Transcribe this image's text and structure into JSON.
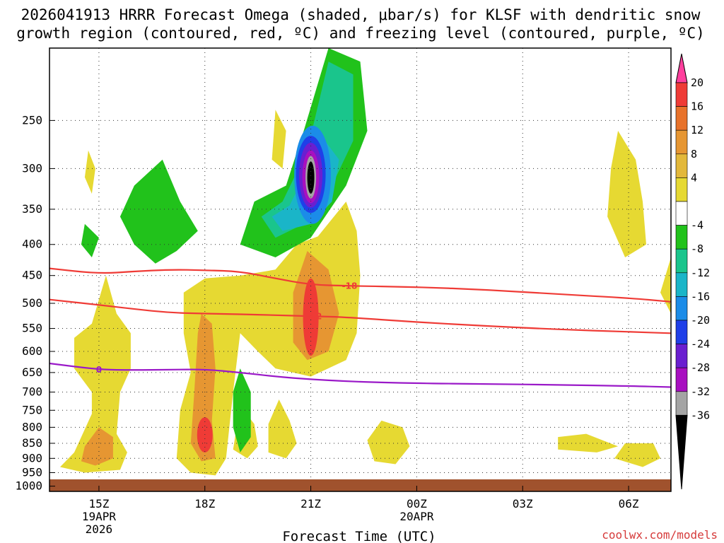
{
  "chart_data": {
    "type": "contour",
    "title_line1": "2026041913 HRRR Forecast Omega (shaded, μbar/s) for KLSF with dendritic snow",
    "title_line2": "growth region (contoured, red, ºC) and freezing level (contoured, purple, ºC)",
    "xlabel": "Forecast Time (UTC)",
    "credit": "coolwx.com/models",
    "x_hours": [
      0,
      31
    ],
    "xlim": [
      13.6,
      31.2
    ],
    "x_ticks": [
      {
        "hour": 15,
        "lines": [
          "15Z",
          "19APR",
          "2026"
        ]
      },
      {
        "hour": 18,
        "lines": [
          "18Z"
        ]
      },
      {
        "hour": 21,
        "lines": [
          "21Z"
        ]
      },
      {
        "hour": 24,
        "lines": [
          "00Z",
          "20APR"
        ]
      },
      {
        "hour": 27,
        "lines": [
          "03Z"
        ]
      },
      {
        "hour": 30,
        "lines": [
          "06Z"
        ]
      }
    ],
    "y_ticks": [
      250,
      300,
      350,
      400,
      450,
      500,
      550,
      600,
      650,
      700,
      750,
      800,
      850,
      900,
      950,
      1000
    ],
    "ylim": [
      190,
      1020
    ],
    "y_scale": "log-pressure",
    "colorbar": {
      "labels": [
        "20",
        "16",
        "12",
        "8",
        "4",
        "-4",
        "-8",
        "-12",
        "-16",
        "-20",
        "-24",
        "-28",
        "-32",
        "-36"
      ],
      "colors": [
        "#ff3f9d",
        "#ef3b36",
        "#e8722a",
        "#e69632",
        "#e3b83a",
        "#e6d932",
        "#ffffff",
        "#21c21b",
        "#1ac58c",
        "#1ab5c8",
        "#1b8ce8",
        "#1f3fe8",
        "#6a1fd0",
        "#a80fc0",
        "#a4a4a4",
        "#000000"
      ]
    },
    "omega_features": [
      {
        "name": "rising-motion core 21Z",
        "hour": 21.0,
        "p": 310,
        "value": -36
      },
      {
        "name": "upper green band",
        "hour": 21.3,
        "p": 330,
        "value": -8
      },
      {
        "name": "sinking core 18Z low level",
        "hour": 18.0,
        "p": 830,
        "value": 16
      },
      {
        "name": "sinking core 21Z mid level",
        "hour": 21.0,
        "p": 530,
        "value": 16
      },
      {
        "name": "mid-level sinking 15Z",
        "hour": 15.3,
        "p": 870,
        "value": 8
      },
      {
        "name": "late weak sinking 06Z",
        "hour": 30.0,
        "p": 330,
        "value": 4
      }
    ],
    "contours": [
      {
        "name": "dgz-upper",
        "color": "#ef3b36",
        "label": "-18",
        "x": [
          13.6,
          15,
          16,
          17,
          18,
          19,
          20,
          21,
          22,
          24,
          26,
          28,
          30,
          31.2
        ],
        "p": [
          438,
          447,
          443,
          440,
          441,
          443,
          455,
          466,
          468,
          470,
          475,
          483,
          490,
          497
        ]
      },
      {
        "name": "dgz-lower",
        "color": "#ef3b36",
        "label": "-12",
        "x": [
          13.6,
          15,
          16,
          17,
          18,
          19,
          20,
          21,
          22,
          24,
          26,
          28,
          30,
          31.2
        ],
        "p": [
          493,
          503,
          511,
          518,
          520,
          521,
          523,
          525,
          527,
          537,
          545,
          552,
          557,
          560
        ]
      },
      {
        "name": "freezing-level",
        "color": "#9a19c8",
        "label": "0",
        "x": [
          13.6,
          15,
          16,
          17,
          18,
          19,
          20,
          21,
          22,
          23,
          24,
          26,
          28,
          30,
          31.2
        ],
        "p": [
          628,
          643,
          644,
          643,
          642,
          650,
          660,
          667,
          672,
          675,
          677,
          679,
          681,
          684,
          687
        ]
      }
    ]
  }
}
